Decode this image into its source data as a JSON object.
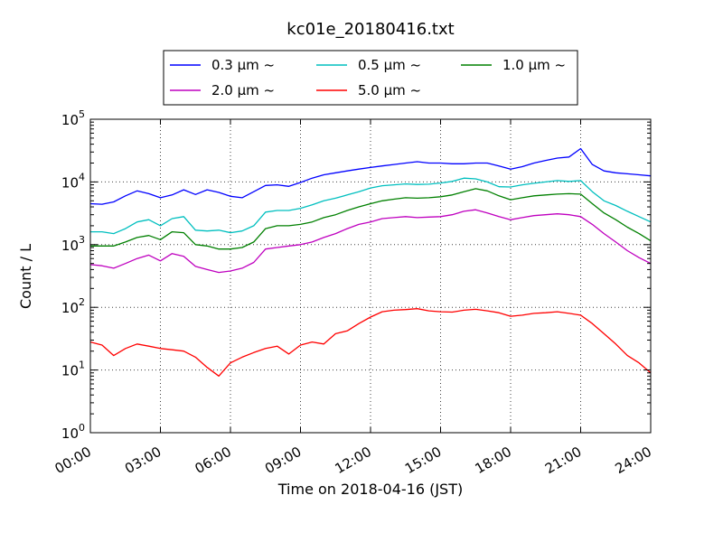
{
  "chart_data": {
    "type": "line",
    "title": "kc01e_20180416.txt",
    "xlabel": "Time on 2018-04-16 (JST)",
    "ylabel": "Count / L",
    "yscale": "log",
    "ylim": [
      1,
      100000
    ],
    "xlim": [
      0,
      24
    ],
    "grid": true,
    "legend_position": "top",
    "x_ticks": [
      {
        "value": 0,
        "label": "00:00"
      },
      {
        "value": 3,
        "label": "03:00"
      },
      {
        "value": 6,
        "label": "06:00"
      },
      {
        "value": 9,
        "label": "09:00"
      },
      {
        "value": 12,
        "label": "12:00"
      },
      {
        "value": 15,
        "label": "15:00"
      },
      {
        "value": 18,
        "label": "18:00"
      },
      {
        "value": 21,
        "label": "21:00"
      },
      {
        "value": 24,
        "label": "24:00"
      }
    ],
    "y_ticks": [
      {
        "value": 1,
        "base": "10",
        "exp": "0"
      },
      {
        "value": 10,
        "base": "10",
        "exp": "1"
      },
      {
        "value": 100,
        "base": "10",
        "exp": "2"
      },
      {
        "value": 1000,
        "base": "10",
        "exp": "3"
      },
      {
        "value": 10000,
        "base": "10",
        "exp": "4"
      },
      {
        "value": 100000,
        "base": "10",
        "exp": "5"
      }
    ],
    "x": [
      0,
      0.5,
      1,
      1.5,
      2,
      2.5,
      3,
      3.5,
      4,
      4.5,
      5,
      5.5,
      6,
      6.5,
      7,
      7.5,
      8,
      8.5,
      9,
      9.5,
      10,
      10.5,
      11,
      11.5,
      12,
      12.5,
      13,
      13.5,
      14,
      14.5,
      15,
      15.5,
      16,
      16.5,
      17,
      17.5,
      18,
      18.5,
      19,
      19.5,
      20,
      20.5,
      21,
      21.5,
      22,
      22.5,
      23,
      23.5,
      24
    ],
    "series": [
      {
        "name": "0.3 μm ~",
        "color": "#0000ff",
        "values": [
          4500,
          4400,
          4800,
          6000,
          7200,
          6500,
          5600,
          6200,
          7500,
          6300,
          7500,
          6800,
          5900,
          5600,
          7000,
          8800,
          9000,
          8500,
          9800,
          11500,
          13000,
          14000,
          15000,
          16000,
          17000,
          18000,
          19000,
          20000,
          21000,
          20000,
          20000,
          19500,
          19500,
          20000,
          20000,
          18000,
          16000,
          17500,
          20000,
          22000,
          24000,
          25000,
          34000,
          19000,
          15000,
          14000,
          13500,
          13000,
          12500
        ]
      },
      {
        "name": "0.5 μm ~",
        "color": "#00bfbf",
        "values": [
          1600,
          1600,
          1500,
          1800,
          2300,
          2500,
          2000,
          2600,
          2800,
          1700,
          1650,
          1700,
          1550,
          1650,
          2000,
          3300,
          3500,
          3500,
          3800,
          4300,
          5000,
          5500,
          6200,
          7000,
          8000,
          8700,
          9000,
          9300,
          9100,
          9200,
          9600,
          10200,
          11500,
          11200,
          10000,
          8400,
          8300,
          9000,
          9500,
          10000,
          10500,
          10200,
          10500,
          7000,
          5000,
          4200,
          3400,
          2800,
          2300
        ]
      },
      {
        "name": "1.0 μm ~",
        "color": "#008000",
        "values": [
          950,
          950,
          950,
          1100,
          1300,
          1400,
          1200,
          1600,
          1550,
          1000,
          950,
          850,
          850,
          900,
          1100,
          1800,
          2000,
          2000,
          2100,
          2300,
          2700,
          3000,
          3500,
          4000,
          4500,
          5000,
          5300,
          5600,
          5500,
          5600,
          5800,
          6200,
          7000,
          7800,
          7200,
          6000,
          5200,
          5600,
          6000,
          6200,
          6400,
          6500,
          6400,
          4500,
          3200,
          2500,
          1900,
          1500,
          1150
        ]
      },
      {
        "name": "2.0 μm ~",
        "color": "#bf00bf",
        "values": [
          480,
          460,
          420,
          500,
          600,
          680,
          550,
          720,
          650,
          450,
          400,
          360,
          380,
          420,
          520,
          850,
          900,
          950,
          1000,
          1100,
          1300,
          1500,
          1800,
          2100,
          2300,
          2600,
          2700,
          2800,
          2700,
          2750,
          2800,
          3000,
          3400,
          3600,
          3200,
          2800,
          2500,
          2700,
          2900,
          3000,
          3100,
          3000,
          2800,
          2100,
          1500,
          1100,
          800,
          620,
          500
        ]
      },
      {
        "name": "5.0 μm ~",
        "color": "#ff0000",
        "values": [
          28,
          25,
          17,
          22,
          26,
          24,
          22,
          21,
          20,
          16,
          11,
          8,
          13,
          16,
          19,
          22,
          24,
          18,
          25,
          28,
          26,
          38,
          42,
          55,
          70,
          85,
          90,
          92,
          95,
          88,
          85,
          84,
          90,
          93,
          88,
          82,
          72,
          75,
          80,
          82,
          85,
          80,
          75,
          55,
          38,
          26,
          17,
          13,
          9
        ]
      }
    ]
  }
}
